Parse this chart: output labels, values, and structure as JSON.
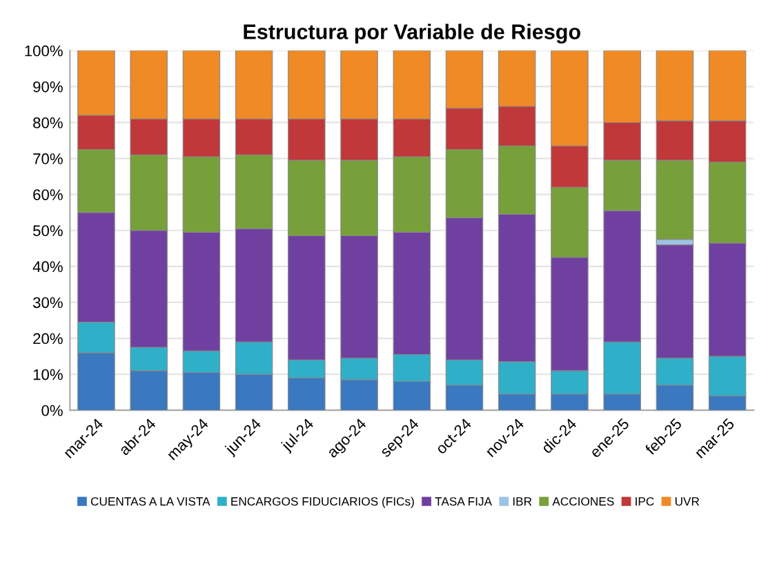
{
  "chart_data": {
    "type": "bar",
    "stacked": true,
    "title": "Estructura por Variable de Riesgo",
    "categories": [
      "mar-24",
      "abr-24",
      "may-24",
      "jun-24",
      "jul-24",
      "ago-24",
      "sep-24",
      "oct-24",
      "nov-24",
      "dic-24",
      "ene-25",
      "feb-25",
      "mar-25"
    ],
    "series": [
      {
        "name": "CUENTAS A LA VISTA",
        "color": "#3a78c0",
        "values": [
          16,
          11,
          10.5,
          10,
          9,
          8.5,
          8,
          7,
          4.5,
          4.5,
          4.5,
          7,
          4
        ]
      },
      {
        "name": "ENCARGOS FIDUCIARIOS (FICs)",
        "color": "#2fb0c8",
        "values": [
          8.5,
          6.5,
          6,
          9,
          5,
          6,
          7.5,
          7,
          9,
          6.5,
          14.5,
          7.5,
          11
        ]
      },
      {
        "name": "TASA FIJA",
        "color": "#7040a0",
        "values": [
          30.5,
          32.5,
          33,
          31.5,
          34.5,
          34,
          34,
          39.5,
          41,
          31.5,
          36.5,
          31.5,
          31.5
        ]
      },
      {
        "name": "IBR",
        "color": "#9dc3e6",
        "values": [
          null,
          null,
          null,
          null,
          null,
          null,
          null,
          null,
          null,
          null,
          null,
          1.5,
          null
        ]
      },
      {
        "name": "ACCIONES",
        "color": "#77a03a",
        "values": [
          17.5,
          21,
          21,
          20.5,
          21,
          21,
          21,
          19,
          19,
          19.5,
          14,
          22,
          22.5
        ]
      },
      {
        "name": "IPC",
        "color": "#c0383a",
        "values": [
          9.5,
          10,
          10.5,
          10,
          11.5,
          11.5,
          10.5,
          11.5,
          11,
          11.5,
          10.5,
          11,
          11.5
        ]
      },
      {
        "name": "UVR",
        "color": "#f08a24",
        "values": [
          18,
          19,
          19,
          19,
          19,
          19,
          19,
          16,
          15.5,
          26.5,
          20,
          19.5,
          19.5
        ]
      }
    ],
    "ylim": [
      0,
      100
    ],
    "yticks": [
      {
        "value": 0,
        "label": "0%"
      },
      {
        "value": 10,
        "label": "10%"
      },
      {
        "value": 20,
        "label": "20%"
      },
      {
        "value": 30,
        "label": "30%"
      },
      {
        "value": 40,
        "label": "40%"
      },
      {
        "value": 50,
        "label": "50%"
      },
      {
        "value": 60,
        "label": "60%"
      },
      {
        "value": 70,
        "label": "70%"
      },
      {
        "value": 80,
        "label": "80%"
      },
      {
        "value": 90,
        "label": "90%"
      },
      {
        "value": 100,
        "label": "100%"
      }
    ],
    "grid": "y",
    "legend": "bottom"
  }
}
